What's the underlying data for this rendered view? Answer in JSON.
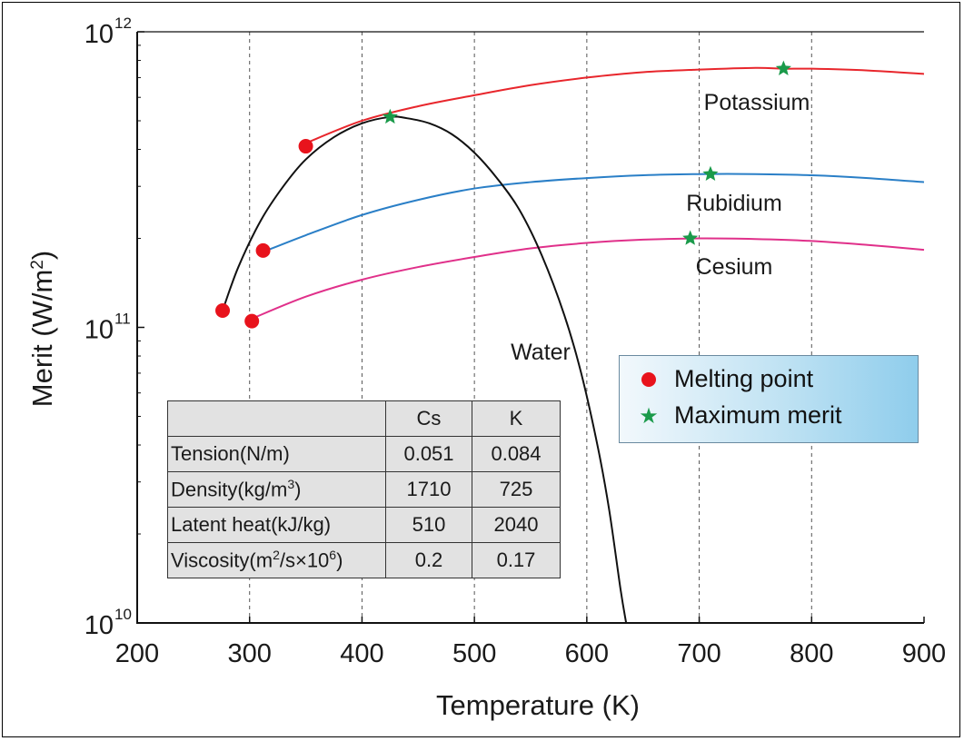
{
  "chart_data": {
    "type": "line",
    "xlabel": "Temperature (K)",
    "ylabel": "Merit (W/m²)",
    "xlim": [
      200,
      900
    ],
    "x_ticks": [
      200,
      300,
      400,
      500,
      600,
      700,
      800,
      900
    ],
    "x_tick_labels": [
      "200",
      "300",
      "400",
      "500",
      "600",
      "700",
      "800",
      "900"
    ],
    "ylim": [
      10000000000.0,
      1000000000000.0
    ],
    "y_scale": "log",
    "y_ticks": [
      10000000000.0,
      100000000000.0,
      1000000000000.0
    ],
    "y_tick_exponents": [
      "10",
      "11",
      "12"
    ],
    "y_tick_base": "10",
    "grid": "vertical dashed",
    "series": [
      {
        "name": "Potassium",
        "color": "#e8262c",
        "label": "Potassium",
        "points": [
          [
            350,
            420000000000.0
          ],
          [
            400,
            500000000000.0
          ],
          [
            450,
            560000000000.0
          ],
          [
            500,
            610000000000.0
          ],
          [
            550,
            660000000000.0
          ],
          [
            600,
            700000000000.0
          ],
          [
            650,
            730000000000.0
          ],
          [
            700,
            745000000000.0
          ],
          [
            750,
            755000000000.0
          ],
          [
            775,
            750000000000.0
          ],
          [
            800,
            750000000000.0
          ],
          [
            850,
            740000000000.0
          ],
          [
            900,
            720000000000.0
          ]
        ]
      },
      {
        "name": "Rubidium",
        "color": "#2a7fc7",
        "label": "Rubidium",
        "points": [
          [
            312,
            180000000000.0
          ],
          [
            350,
            205000000000.0
          ],
          [
            400,
            240000000000.0
          ],
          [
            450,
            270000000000.0
          ],
          [
            500,
            295000000000.0
          ],
          [
            550,
            310000000000.0
          ],
          [
            600,
            320000000000.0
          ],
          [
            650,
            327000000000.0
          ],
          [
            700,
            330000000000.0
          ],
          [
            750,
            330000000000.0
          ],
          [
            800,
            327000000000.0
          ],
          [
            850,
            320000000000.0
          ],
          [
            900,
            310000000000.0
          ]
        ]
      },
      {
        "name": "Cesium",
        "color": "#e0308a",
        "label": "Cesium",
        "points": [
          [
            302,
            107000000000.0
          ],
          [
            350,
            127000000000.0
          ],
          [
            400,
            145000000000.0
          ],
          [
            450,
            160000000000.0
          ],
          [
            500,
            173000000000.0
          ],
          [
            550,
            185000000000.0
          ],
          [
            600,
            193000000000.0
          ],
          [
            650,
            198000000000.0
          ],
          [
            700,
            200000000000.0
          ],
          [
            750,
            199000000000.0
          ],
          [
            800,
            196000000000.0
          ],
          [
            850,
            190000000000.0
          ],
          [
            900,
            183000000000.0
          ]
        ]
      },
      {
        "name": "Water",
        "color": "#111111",
        "label": "Water",
        "points": [
          [
            276,
            114000000000.0
          ],
          [
            290,
            160000000000.0
          ],
          [
            310,
            230000000000.0
          ],
          [
            330,
            300000000000.0
          ],
          [
            350,
            370000000000.0
          ],
          [
            375,
            440000000000.0
          ],
          [
            400,
            490000000000.0
          ],
          [
            425,
            515000000000.0
          ],
          [
            440,
            510000000000.0
          ],
          [
            460,
            490000000000.0
          ],
          [
            480,
            450000000000.0
          ],
          [
            500,
            390000000000.0
          ],
          [
            520,
            320000000000.0
          ],
          [
            540,
            250000000000.0
          ],
          [
            560,
            175000000000.0
          ],
          [
            580,
            110000000000.0
          ],
          [
            595,
            70000000000.0
          ],
          [
            610,
            39000000000.0
          ],
          [
            620,
            24000000000.0
          ],
          [
            630,
            13000000000.0
          ],
          [
            635,
            10000000000.0
          ]
        ]
      }
    ],
    "markers": {
      "melting_point": [
        [
          276,
          114000000000.0
        ],
        [
          302,
          105000000000.0
        ],
        [
          312,
          182000000000.0
        ],
        [
          350,
          410000000000.0
        ]
      ],
      "maximum_merit": [
        [
          425,
          515000000000.0
        ],
        [
          710,
          330000000000.0
        ],
        [
          692,
          200000000000.0
        ],
        [
          775,
          750000000000.0
        ]
      ]
    },
    "legend": {
      "position": "right-middle",
      "items": [
        {
          "symbol": "red-dot",
          "label": "Melting point"
        },
        {
          "symbol": "green-star",
          "label": "Maximum merit"
        }
      ]
    },
    "table": {
      "columns": [
        "",
        "Cs",
        "K"
      ],
      "rows": [
        {
          "label": "Tension(N/m)",
          "cs": "0.051",
          "k": "0.084"
        },
        {
          "label_main": "Density(kg/m",
          "label_sup": "3",
          "label_end": ")",
          "cs": "1710",
          "k": "725"
        },
        {
          "label": "Latent heat(kJ/kg)",
          "cs": "510",
          "k": "2040"
        },
        {
          "label_main": "Viscosity(m",
          "label_sup": "2",
          "label_mid": "/s×10",
          "label_sup2": "6",
          "label_end": ")",
          "cs": "0.2",
          "k": "0.17"
        }
      ]
    }
  }
}
